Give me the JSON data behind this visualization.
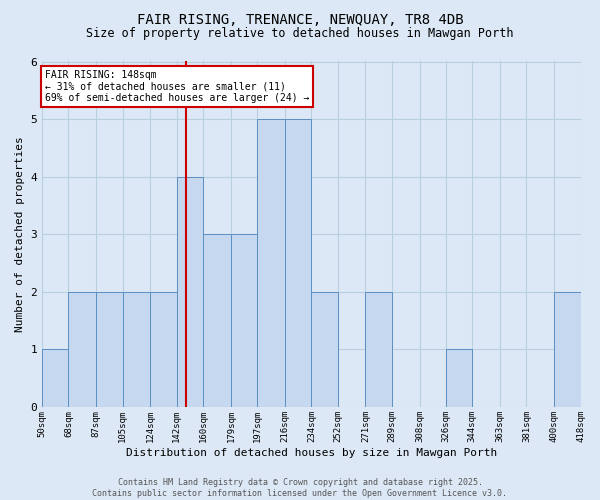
{
  "title_line1": "FAIR RISING, TRENANCE, NEWQUAY, TR8 4DB",
  "title_line2": "Size of property relative to detached houses in Mawgan Porth",
  "xlabel": "Distribution of detached houses by size in Mawgan Porth",
  "ylabel": "Number of detached properties",
  "bin_edges": [
    50,
    68,
    87,
    105,
    124,
    142,
    160,
    179,
    197,
    216,
    234,
    252,
    271,
    289,
    308,
    326,
    344,
    363,
    381,
    400,
    418
  ],
  "counts": [
    1,
    2,
    2,
    2,
    2,
    4,
    3,
    3,
    5,
    5,
    2,
    0,
    2,
    0,
    0,
    1,
    0,
    0,
    0,
    2
  ],
  "tick_labels": [
    "50sqm",
    "68sqm",
    "87sqm",
    "105sqm",
    "124sqm",
    "142sqm",
    "160sqm",
    "179sqm",
    "197sqm",
    "216sqm",
    "234sqm",
    "252sqm",
    "271sqm",
    "289sqm",
    "308sqm",
    "326sqm",
    "344sqm",
    "363sqm",
    "381sqm",
    "400sqm",
    "418sqm"
  ],
  "bar_color": "#c5d8f0",
  "bar_edge_color": "#5a8fc2",
  "vline_x": 148,
  "vline_color": "#cc0000",
  "annotation_text": "FAIR RISING: 148sqm\n← 31% of detached houses are smaller (11)\n69% of semi-detached houses are larger (24) →",
  "annotation_box_color": "white",
  "annotation_box_edge": "#cc0000",
  "ylim": [
    0,
    6
  ],
  "yticks": [
    0,
    1,
    2,
    3,
    4,
    5,
    6
  ],
  "grid_color": "#b8cfe0",
  "background_color": "#dce8f5",
  "footer_text": "Contains HM Land Registry data © Crown copyright and database right 2025.\nContains public sector information licensed under the Open Government Licence v3.0.",
  "figsize": [
    6.0,
    5.0
  ],
  "dpi": 100
}
